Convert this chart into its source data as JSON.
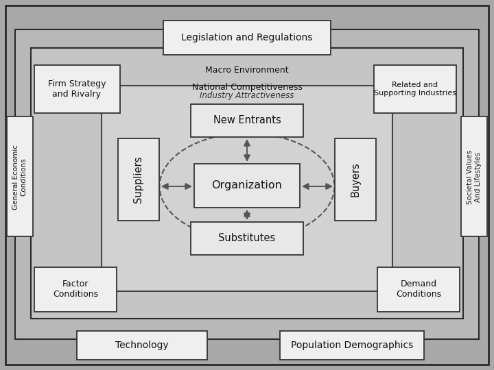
{
  "bg_outer": "#a8a8a8",
  "bg_layer1": "#b8b8b8",
  "bg_layer2": "#c5c5c5",
  "bg_industry": "#d2d2d2",
  "box_fill": "#efefef",
  "box_fill_inner": "#e8e8e8",
  "box_edge": "#333333",
  "labels": {
    "legislation": "Legislation and Regulations",
    "macro": "Macro Environment",
    "national": "National Competitiveness",
    "firm_strategy": "Firm Strategy\nand Rivalry",
    "related": "Related and\nSupporting Industries",
    "general_econ": "General Economic\nConditions",
    "societal": "Societal Values\nAnd Lifestyles",
    "factor": "Factor\nConditions",
    "demand": "Demand\nConditions",
    "technology": "Technology",
    "population": "Population Demographics",
    "industry_attr": "Industry Attractiveness",
    "new_entrants": "New Entrants",
    "suppliers": "Suppliers",
    "buyers": "Buyers",
    "substitutes": "Substitutes",
    "organization": "Organization"
  }
}
